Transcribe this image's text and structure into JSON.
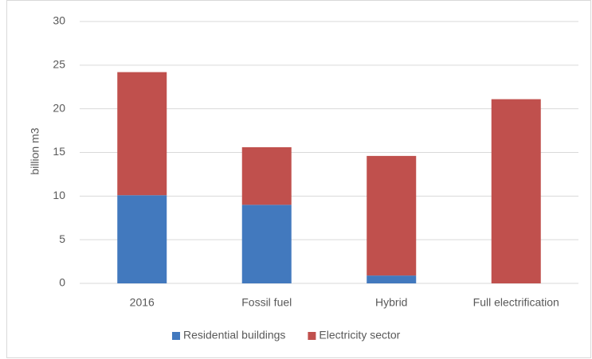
{
  "chart_data": {
    "type": "stacked_bar",
    "y_label": "billion m3",
    "categories": [
      "2016",
      "Fossil fuel",
      "Hybrid",
      "Full electrification"
    ],
    "series": [
      {
        "name": "Residential buildings",
        "color": "#4279be",
        "values": [
          10.1,
          9.0,
          0.9,
          0
        ]
      },
      {
        "name": "Electricity sector",
        "color": "#c0504d",
        "values": [
          14.1,
          6.6,
          13.7,
          21.1
        ]
      }
    ],
    "ylim": [
      0,
      30
    ],
    "yticks": [
      0,
      5,
      10,
      15,
      20,
      25,
      30
    ],
    "grid": true,
    "legend": "bottom"
  }
}
